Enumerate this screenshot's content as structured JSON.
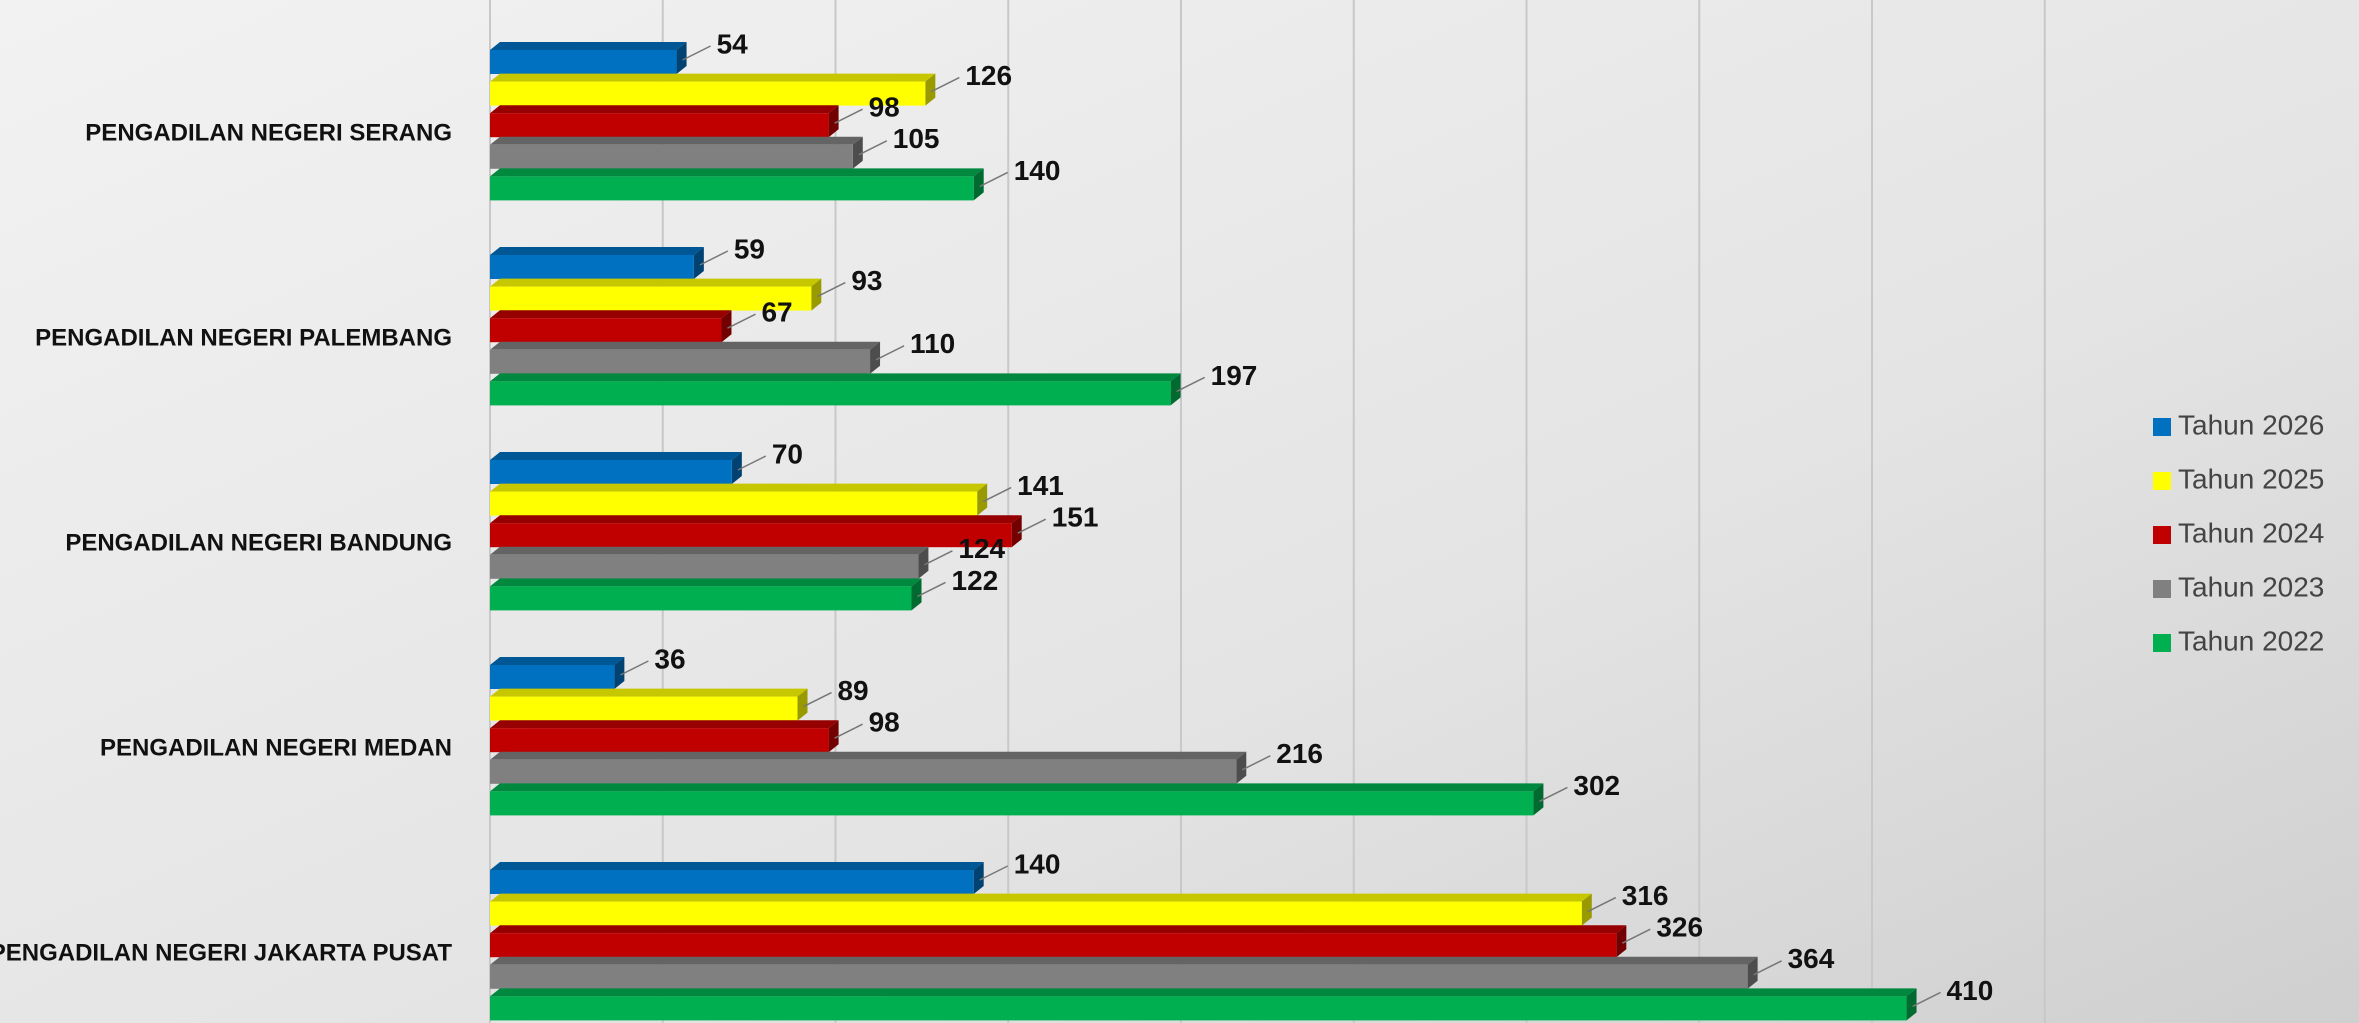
{
  "chart_data": {
    "type": "bar",
    "orientation": "horizontal",
    "categories": [
      "PENGADILAN NEGERI SERANG",
      "PENGADILAN NEGERI PALEMBANG",
      "PENGADILAN NEGERI BANDUNG",
      "PENGADILAN NEGERI MEDAN",
      "PENGADILAN NEGERI JAKARTA PUSAT"
    ],
    "series": [
      {
        "name": "Tahun 2026",
        "color": "#0070c0",
        "values": [
          54,
          59,
          70,
          36,
          140
        ]
      },
      {
        "name": "Tahun 2025",
        "color": "#ffff00",
        "values": [
          126,
          93,
          141,
          89,
          316
        ]
      },
      {
        "name": "Tahun 2024",
        "color": "#c00000",
        "values": [
          98,
          67,
          151,
          98,
          326
        ]
      },
      {
        "name": "Tahun 2023",
        "color": "#808080",
        "values": [
          105,
          110,
          124,
          216,
          364
        ]
      },
      {
        "name": "Tahun 2022",
        "color": "#00b050",
        "values": [
          140,
          197,
          122,
          302,
          410
        ]
      }
    ],
    "xlim": [
      0,
      450
    ],
    "xticks": [
      0,
      50,
      100,
      150,
      200,
      250,
      300,
      350,
      400,
      450
    ],
    "grid": true,
    "legend": "right"
  }
}
